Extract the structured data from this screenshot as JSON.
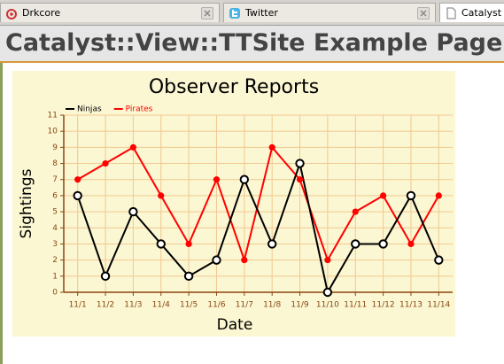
{
  "tabs": [
    "Drkcore",
    "Twitter",
    "Catalyst"
  ],
  "header": {
    "title": "Catalyst::View::TTSite Example Page"
  },
  "chart_data": {
    "type": "line",
    "title": "Observer Reports",
    "x_label": "Date",
    "y_label": "Sightings",
    "categories": [
      "11/1",
      "11/2",
      "11/3",
      "11/4",
      "11/5",
      "11/6",
      "11/7",
      "11/8",
      "11/9",
      "11/10",
      "11/11",
      "11/12",
      "11/13",
      "11/14"
    ],
    "series": [
      {
        "name": "Ninjas",
        "color": "#000000",
        "values": [
          6,
          1,
          5,
          3,
          1,
          2,
          7,
          3,
          8,
          0,
          3,
          3,
          6,
          2
        ]
      },
      {
        "name": "Pirates",
        "color": "#ff0000",
        "values": [
          7,
          8,
          9,
          6,
          3,
          7,
          2,
          9,
          7,
          2,
          5,
          6,
          3,
          6
        ]
      }
    ],
    "ylim": [
      0,
      11
    ],
    "yticks": [
      0,
      1,
      2,
      3,
      4,
      5,
      6,
      7,
      8,
      9,
      10,
      11
    ],
    "grid": true,
    "legend": "top-left"
  }
}
